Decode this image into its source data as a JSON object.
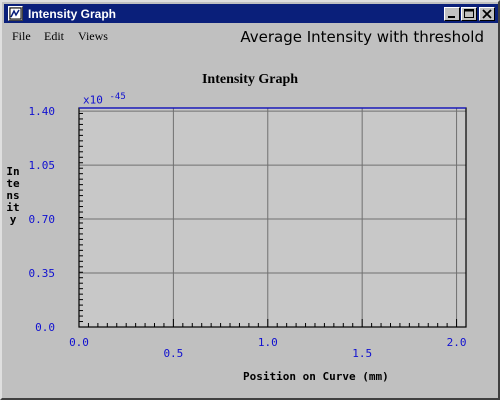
{
  "window": {
    "title": "Intensity Graph"
  },
  "menu": {
    "items": [
      "File",
      "Edit",
      "Views"
    ],
    "title": "Average Intensity with threshold"
  },
  "colors": {
    "titlebar": "#0a1f7a",
    "plot_bg": "#c8c8c8",
    "tick_label": "#1010d0",
    "series": "#1010d0"
  },
  "chart_data": {
    "type": "line",
    "title": "Intensity Graph",
    "xlabel": "Position on Curve (mm)",
    "ylabel": "Intensity",
    "y_exponent_prefix": "x10",
    "y_exponent": "-45",
    "xlim": [
      0.0,
      2.05
    ],
    "ylim": [
      0.0,
      1.42
    ],
    "x_ticks": [
      "0.0",
      "0.5",
      "1.0",
      "1.5",
      "2.0"
    ],
    "y_ticks": [
      "0.0",
      "0.35",
      "0.70",
      "1.05",
      "1.40"
    ],
    "grid": true,
    "series": [
      {
        "x": [
          0.0,
          2.05
        ],
        "y": [
          1.42,
          1.42
        ]
      }
    ]
  }
}
